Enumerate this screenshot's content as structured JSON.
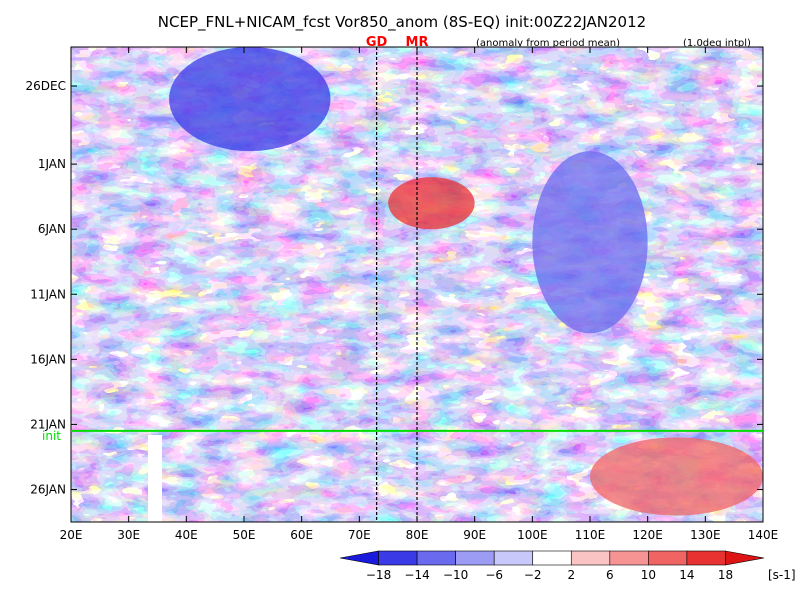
{
  "chart_data": {
    "type": "heatmap",
    "title": "NCEP_FNL+NICAM_fcst Vor850_anom (8S-EQ) init:00Z22JAN2012",
    "subtitle_left": "(anomaly from period mean)",
    "subtitle_right": "(1.0deg intpl)",
    "xlabel": "",
    "ylabel": "",
    "x_ticks": [
      "20E",
      "30E",
      "40E",
      "50E",
      "60E",
      "70E",
      "80E",
      "90E",
      "100E",
      "110E",
      "120E",
      "130E",
      "140E"
    ],
    "x_range": [
      20,
      140
    ],
    "y_ticks": [
      {
        "label": "26DEC",
        "day": 3
      },
      {
        "label": "1JAN",
        "day": 9
      },
      {
        "label": "6JAN",
        "day": 14
      },
      {
        "label": "11JAN",
        "day": 19
      },
      {
        "label": "16JAN",
        "day": 24
      },
      {
        "label": "21JAN",
        "day": 29
      },
      {
        "label": "26JAN",
        "day": 34
      }
    ],
    "y_range_days": [
      0,
      36.5
    ],
    "init_line": {
      "label": "init",
      "day": 29.5,
      "color": "#00dd00"
    },
    "station_markers": [
      {
        "label": "GD",
        "lon": 73
      },
      {
        "label": "MR",
        "lon": 80
      }
    ],
    "colorbar": {
      "levels": [
        "−18",
        "−14",
        "−10",
        "−6",
        "−2",
        "2",
        "6",
        "10",
        "14",
        "18"
      ],
      "unit": "[s-1]",
      "colors": [
        "#1a1adc",
        "#3a3ae6",
        "#6a6aee",
        "#9c9cf4",
        "#c8c8fa",
        "#ffffff",
        "#fac4c4",
        "#f69494",
        "#f06464",
        "#e83232",
        "#dc1414"
      ]
    },
    "features": [
      {
        "kind": "negative-anomaly",
        "lon": [
          37,
          65
        ],
        "days": [
          0,
          8
        ],
        "value": -16
      },
      {
        "kind": "positive-anomaly",
        "lon": [
          75,
          90
        ],
        "days": [
          10,
          14
        ],
        "value": 16
      },
      {
        "kind": "positive-anomaly",
        "lon": [
          110,
          140
        ],
        "days": [
          30,
          36
        ],
        "value": 14
      },
      {
        "kind": "negative-anomaly",
        "lon": [
          100,
          120
        ],
        "days": [
          8,
          22
        ],
        "value": -10
      }
    ]
  }
}
